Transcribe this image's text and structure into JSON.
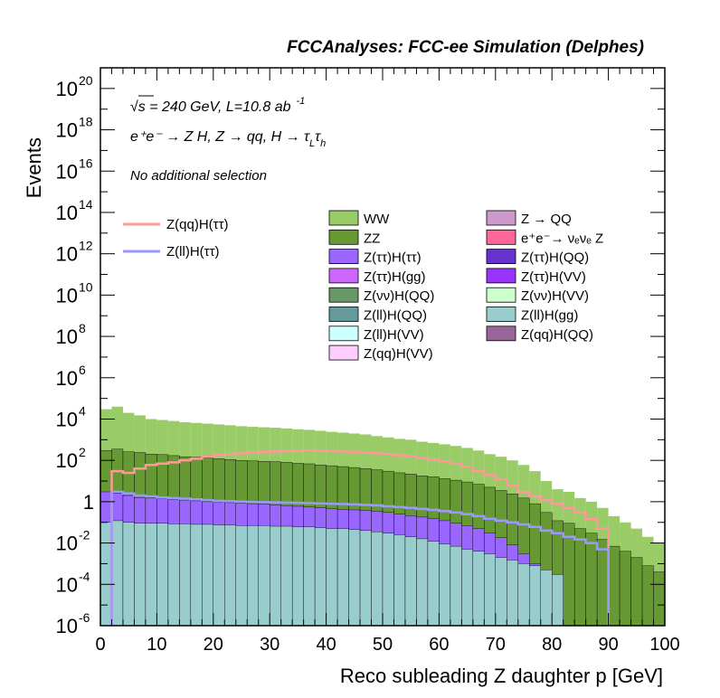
{
  "header": {
    "title": "FCCAnalyses: FCC-ee Simulation (Delphes)"
  },
  "annotations": {
    "line1_sqrt": "√s = 240 GeV, L=10.8 ab",
    "line1_sup": "-1",
    "line2_main": "e⁺e⁻ → Z H, Z → qq, H → τ",
    "line2_sub1": "L",
    "line2_tau": "τ",
    "line2_sub2": "h",
    "line3": "No additional selection"
  },
  "chart_data": {
    "type": "bar",
    "stacked": true,
    "log_y": true,
    "xlabel": "Reco subleading Z daughter p [GeV]",
    "ylabel": "Events",
    "xlim": [
      0,
      100
    ],
    "ylim": [
      1e-06,
      1e+21
    ],
    "bin_width": 2,
    "x_ticks": [
      "0",
      "10",
      "20",
      "30",
      "40",
      "50",
      "60",
      "70",
      "80",
      "90",
      "100"
    ],
    "y_ticks": [
      {
        "base": "10",
        "exp": "-6"
      },
      {
        "base": "10",
        "exp": "-4"
      },
      {
        "base": "10",
        "exp": "-2"
      },
      {
        "base": "1",
        "exp": ""
      },
      {
        "base": "10",
        "exp": "2"
      },
      {
        "base": "10",
        "exp": "4"
      },
      {
        "base": "10",
        "exp": "6"
      },
      {
        "base": "10",
        "exp": "8"
      },
      {
        "base": "10",
        "exp": "10"
      },
      {
        "base": "10",
        "exp": "12"
      },
      {
        "base": "10",
        "exp": "14"
      },
      {
        "base": "10",
        "exp": "16"
      },
      {
        "base": "10",
        "exp": "18"
      },
      {
        "base": "10",
        "exp": "20"
      }
    ],
    "background_order": [
      "Z(ll)H(gg)",
      "Z(qq)H(QQ)",
      "Z(ll)H(QQ)",
      "Z(νν)H(QQ)",
      "Z(ττ)H(gg)",
      "Z(ττ)H(ττ)",
      "e⁺e⁻→ νₑνₑ Z",
      "Z(νν)H(VV)",
      "Z(ll)H(VV)",
      "Z(qq)H(VV)",
      "Z(ττ)H(QQ)",
      "Z(ττ)H(VV)",
      "Z → QQ",
      "ZZ",
      "WW"
    ],
    "stack_totals": [
      30000,
      40000,
      20000,
      15000,
      10000,
      9000,
      8000,
      7000,
      6500,
      6000,
      5500,
      5000,
      4500,
      4200,
      4000,
      3800,
      3500,
      3200,
      3000,
      2700,
      2400,
      2200,
      2000,
      1800,
      1500,
      1300,
      1100,
      1000,
      800,
      700,
      600,
      500,
      400,
      300,
      200,
      150,
      100,
      60,
      30,
      10,
      4,
      3,
      1.5,
      1,
      0.5,
      0.2,
      0.1,
      0.05,
      0.02,
      0.01
    ],
    "stack_bands": [
      {
        "name": "WW",
        "values": [
          20000,
          25000,
          13000,
          9500,
          6300,
          5700,
          5000,
          4400,
          4100,
          3800,
          3500,
          3200,
          2900,
          2700,
          2600,
          2500,
          2300,
          2100,
          2000,
          1800,
          1600,
          1500,
          1350,
          1200,
          1000,
          870,
          740,
          680,
          540,
          480,
          410,
          340,
          270,
          205,
          135,
          100,
          68,
          40,
          20,
          6.5,
          2.6,
          1.9,
          1.0,
          0.7,
          0.35,
          0.14,
          0.07,
          0.035,
          0.014,
          0.007
        ]
      },
      {
        "name": "ZZ",
        "values": [
          300,
          350,
          260,
          240,
          200,
          190,
          170,
          150,
          140,
          130,
          120,
          110,
          100,
          95,
          90,
          85,
          80,
          72,
          68,
          60,
          55,
          50,
          45,
          40,
          35,
          30,
          25,
          22,
          18,
          16,
          13,
          11,
          9,
          7,
          5,
          3.5,
          2.4,
          1.5,
          0.8,
          0.3,
          0.12,
          0.09,
          0.05,
          0.03,
          0.015,
          0.007,
          0.004,
          0.002,
          0.0008,
          0.0004
        ]
      },
      {
        "name": "Z(ττ)H(ττ)",
        "values": [
          3,
          2.5,
          2,
          1.6,
          1.5,
          1.4,
          1.3,
          1.2,
          1.1,
          1.0,
          0.95,
          0.9,
          0.85,
          0.8,
          0.75,
          0.7,
          0.65,
          0.6,
          0.55,
          0.5,
          0.45,
          0.42,
          0.4,
          0.38,
          0.34,
          0.3,
          0.25,
          0.21,
          0.18,
          0.15,
          0.12,
          0.09,
          0.07,
          0.05,
          0.03,
          0.018,
          0.008,
          0.003,
          0.001,
          0.0003,
          null,
          null,
          null,
          null,
          null,
          null,
          null,
          null,
          null,
          null
        ]
      },
      {
        "name": "Z(ll)H(gg)",
        "values": [
          0.1,
          0.12,
          0.1,
          0.09,
          0.09,
          0.09,
          0.085,
          0.085,
          0.08,
          0.08,
          0.075,
          0.075,
          0.07,
          0.07,
          0.07,
          0.065,
          0.065,
          0.06,
          0.06,
          0.055,
          0.05,
          0.05,
          0.045,
          0.04,
          0.035,
          0.03,
          0.025,
          0.02,
          0.016,
          0.012,
          0.009,
          0.007,
          0.005,
          0.004,
          0.003,
          0.002,
          0.0015,
          0.001,
          0.0008,
          0.0005,
          0.0003,
          null,
          null,
          null,
          null,
          null,
          null,
          null,
          null,
          null
        ]
      }
    ],
    "signal_series": [
      {
        "name": "Z(qq)H(ττ)",
        "color": "#ff9999",
        "values": [
          null,
          30,
          25,
          40,
          60,
          70,
          80,
          100,
          120,
          150,
          180,
          200,
          220,
          250,
          260,
          270,
          280,
          290,
          300,
          290,
          280,
          270,
          260,
          240,
          220,
          200,
          180,
          160,
          130,
          110,
          90,
          70,
          50,
          30,
          20,
          12,
          6,
          3,
          1.8,
          1.2,
          0.8,
          0.5,
          0.3,
          0.15,
          0.05,
          null,
          null,
          null,
          null,
          null
        ]
      },
      {
        "name": "Z(ll)H(ττ)",
        "color": "#9999ff",
        "values": [
          null,
          3,
          2.5,
          2,
          1.8,
          1.6,
          1.5,
          1.4,
          1.3,
          1.2,
          1.1,
          1.05,
          1.0,
          0.98,
          0.95,
          0.93,
          0.9,
          0.88,
          0.85,
          0.82,
          0.8,
          0.77,
          0.74,
          0.7,
          0.66,
          0.6,
          0.55,
          0.5,
          0.45,
          0.4,
          0.35,
          0.3,
          0.25,
          0.2,
          0.15,
          0.12,
          0.1,
          0.08,
          0.06,
          0.04,
          0.03,
          0.02,
          0.015,
          0.01,
          0.005,
          null,
          null,
          null,
          null,
          null
        ]
      }
    ],
    "legend_placement": "upper area, right of signal legend",
    "legend_signals": [
      {
        "label": "Z(qq)H(ττ)",
        "color": "#ff9999"
      },
      {
        "label": "Z(ll)H(ττ)",
        "color": "#9999ff"
      }
    ],
    "legend_backgrounds_col1": [
      {
        "label": "WW",
        "color": "#99cc66"
      },
      {
        "label": "ZZ",
        "color": "#669933"
      },
      {
        "label": "Z(ττ)H(ττ)",
        "color": "#9966ff"
      },
      {
        "label": "Z(ττ)H(gg)",
        "color": "#cc66ff"
      },
      {
        "label": "Z(νν)H(QQ)",
        "color": "#669966"
      },
      {
        "label": "Z(ll)H(QQ)",
        "color": "#669999"
      },
      {
        "label": "Z(ll)H(VV)",
        "color": "#ccffff"
      },
      {
        "label": "Z(qq)H(VV)",
        "color": "#ffccff"
      }
    ],
    "legend_backgrounds_col2": [
      {
        "label": "Z → QQ",
        "color": "#cc99cc"
      },
      {
        "label": "e⁺e⁻→ νₑνₑ Z",
        "color": "#ff6699"
      },
      {
        "label": "Z(ττ)H(QQ)",
        "color": "#6633cc"
      },
      {
        "label": "Z(ττ)H(VV)",
        "color": "#9933ff"
      },
      {
        "label": "Z(νν)H(VV)",
        "color": "#ccffcc"
      },
      {
        "label": "Z(ll)H(gg)",
        "color": "#99cccc"
      },
      {
        "label": "Z(qq)H(QQ)",
        "color": "#996699"
      }
    ],
    "grid": false
  }
}
